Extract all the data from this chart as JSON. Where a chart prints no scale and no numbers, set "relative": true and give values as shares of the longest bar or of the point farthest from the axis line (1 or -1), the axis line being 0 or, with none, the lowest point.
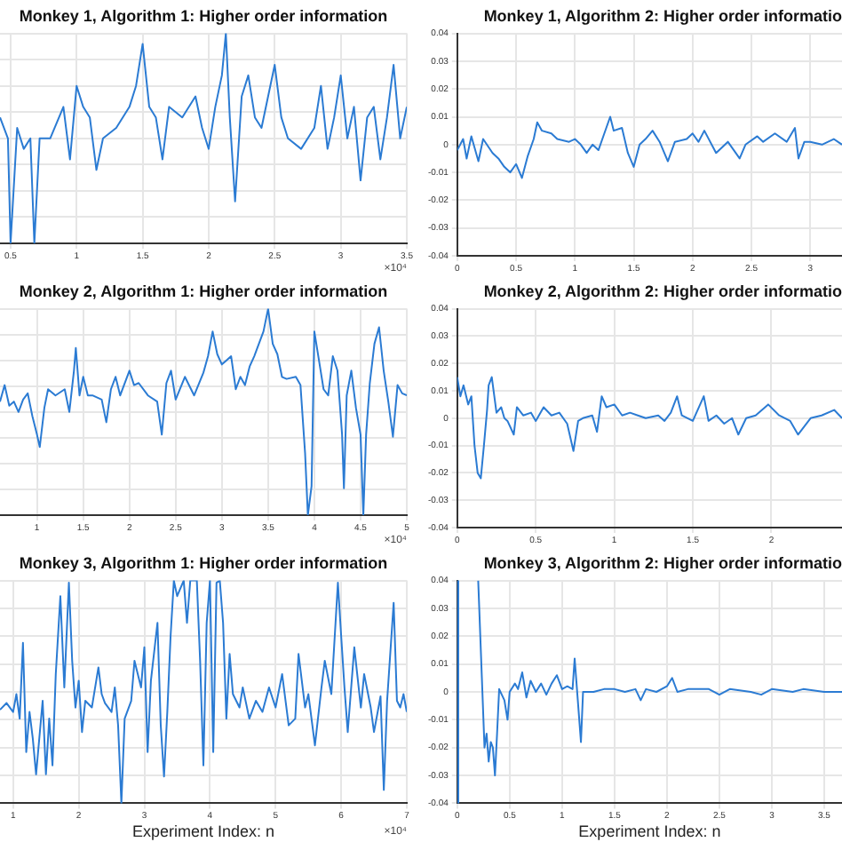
{
  "chart_data": [
    {
      "type": "line",
      "title": "Monkey 1, Algorithm 1: Higher order information",
      "relative": true,
      "grid": true,
      "marker": "none",
      "annotations": [
        "×10⁴"
      ],
      "xlim": [
        0.42,
        3.5
      ],
      "xticks": [
        0.5,
        1,
        1.5,
        2,
        2.5,
        3,
        3.5
      ],
      "series": [
        {
          "color": "#2b7bd3",
          "x": [
            0.42,
            0.48,
            0.5,
            0.55,
            0.6,
            0.65,
            0.68,
            0.72,
            0.8,
            0.9,
            0.95,
            1.0,
            1.05,
            1.1,
            1.15,
            1.2,
            1.3,
            1.4,
            1.45,
            1.5,
            1.55,
            1.6,
            1.65,
            1.7,
            1.8,
            1.9,
            1.95,
            2.0,
            2.05,
            2.1,
            2.13,
            2.16,
            2.2,
            2.25,
            2.3,
            2.35,
            2.4,
            2.5,
            2.55,
            2.6,
            2.7,
            2.8,
            2.85,
            2.9,
            2.95,
            3.0,
            3.05,
            3.1,
            3.15,
            3.2,
            3.25,
            3.3,
            3.35,
            3.4,
            3.45,
            3.5
          ],
          "values": [
            0.6,
            0.5,
            0,
            0.55,
            0.45,
            0.5,
            0,
            0.5,
            0.5,
            0.65,
            0.4,
            0.75,
            0.65,
            0.6,
            0.35,
            0.5,
            0.55,
            0.65,
            0.75,
            0.95,
            0.65,
            0.6,
            0.4,
            0.65,
            0.6,
            0.7,
            0.55,
            0.45,
            0.65,
            0.8,
            1,
            0.6,
            0.2,
            0.7,
            0.8,
            0.6,
            0.55,
            0.85,
            0.6,
            0.5,
            0.45,
            0.55,
            0.75,
            0.45,
            0.6,
            0.8,
            0.5,
            0.65,
            0.3,
            0.6,
            0.65,
            0.4,
            0.6,
            0.85,
            0.5,
            0.65
          ]
        }
      ]
    },
    {
      "type": "line",
      "title": "Monkey 1, Algorithm 2: Higher order informatio",
      "grid": true,
      "marker": "none",
      "xlim": [
        0,
        3.27
      ],
      "xticks": [
        0,
        0.5,
        1,
        1.5,
        2,
        2.5,
        3
      ],
      "ylim": [
        -0.04,
        0.04
      ],
      "yticks": [
        -0.04,
        -0.03,
        -0.02,
        -0.01,
        0,
        0.01,
        0.02,
        0.03,
        0.04
      ],
      "series": [
        {
          "color": "#2b7bd3",
          "x": [
            0,
            0.05,
            0.08,
            0.12,
            0.18,
            0.22,
            0.3,
            0.35,
            0.4,
            0.45,
            0.5,
            0.55,
            0.6,
            0.65,
            0.68,
            0.72,
            0.8,
            0.85,
            0.95,
            1.0,
            1.05,
            1.1,
            1.15,
            1.2,
            1.25,
            1.3,
            1.33,
            1.4,
            1.45,
            1.5,
            1.55,
            1.6,
            1.66,
            1.72,
            1.79,
            1.85,
            1.95,
            2.0,
            2.05,
            2.1,
            2.2,
            2.3,
            2.4,
            2.45,
            2.55,
            2.6,
            2.7,
            2.8,
            2.87,
            2.9,
            2.95,
            3.0,
            3.1,
            3.2,
            3.27
          ],
          "values": [
            -0.002,
            0.002,
            -0.005,
            0.003,
            -0.006,
            0.002,
            -0.003,
            -0.005,
            -0.008,
            -0.01,
            -0.007,
            -0.012,
            -0.004,
            0.002,
            0.008,
            0.005,
            0.004,
            0.002,
            0.001,
            0.002,
            0,
            -0.003,
            0,
            -0.002,
            0.004,
            0.01,
            0.005,
            0.006,
            -0.003,
            -0.008,
            0,
            0.002,
            0.005,
            0.001,
            -0.006,
            0.001,
            0.002,
            0.004,
            0.001,
            0.005,
            -0.003,
            0.001,
            -0.005,
            0,
            0.003,
            0.001,
            0.004,
            0.001,
            0.006,
            -0.005,
            0.001,
            0.001,
            0,
            0.002,
            0
          ]
        }
      ]
    },
    {
      "type": "line",
      "title": "Monkey 2, Algorithm 1: Higher order information",
      "relative": true,
      "grid": true,
      "marker": "none",
      "annotations": [
        "×10⁴"
      ],
      "xlim": [
        0.6,
        5
      ],
      "xticks": [
        1,
        1.5,
        2,
        2.5,
        3,
        3.5,
        4,
        4.5,
        5
      ],
      "series": [
        {
          "color": "#2b7bd3",
          "x": [
            0.6,
            0.65,
            0.7,
            0.75,
            0.8,
            0.85,
            0.9,
            0.95,
            1.0,
            1.03,
            1.08,
            1.12,
            1.2,
            1.3,
            1.35,
            1.4,
            1.42,
            1.46,
            1.5,
            1.55,
            1.6,
            1.7,
            1.75,
            1.8,
            1.85,
            1.9,
            2.0,
            2.05,
            2.1,
            2.2,
            2.3,
            2.35,
            2.4,
            2.45,
            2.5,
            2.6,
            2.7,
            2.8,
            2.85,
            2.9,
            2.95,
            3.0,
            3.1,
            3.15,
            3.2,
            3.25,
            3.3,
            3.35,
            3.45,
            3.5,
            3.55,
            3.6,
            3.65,
            3.7,
            3.8,
            3.85,
            3.9,
            3.93,
            3.97,
            4.0,
            4.05,
            4.1,
            4.15,
            4.2,
            4.25,
            4.3,
            4.32,
            4.35,
            4.4,
            4.45,
            4.5,
            4.53,
            4.56,
            4.6,
            4.65,
            4.7,
            4.75,
            4.8,
            4.85,
            4.9,
            4.95,
            5.0
          ],
          "values": [
            0.55,
            0.63,
            0.53,
            0.55,
            0.5,
            0.56,
            0.59,
            0.48,
            0.39,
            0.33,
            0.52,
            0.61,
            0.58,
            0.61,
            0.5,
            0.7,
            0.81,
            0.58,
            0.67,
            0.58,
            0.58,
            0.56,
            0.45,
            0.61,
            0.67,
            0.58,
            0.7,
            0.63,
            0.64,
            0.58,
            0.55,
            0.39,
            0.64,
            0.7,
            0.56,
            0.67,
            0.58,
            0.69,
            0.77,
            0.89,
            0.78,
            0.73,
            0.77,
            0.61,
            0.67,
            0.63,
            0.72,
            0.77,
            0.89,
            1,
            0.83,
            0.78,
            0.67,
            0.66,
            0.67,
            0.63,
            0.3,
            0,
            0.14,
            0.89,
            0.75,
            0.61,
            0.58,
            0.77,
            0.7,
            0.39,
            0.13,
            0.58,
            0.7,
            0.52,
            0.39,
            0,
            0.39,
            0.64,
            0.83,
            0.91,
            0.7,
            0.55,
            0.38,
            0.63,
            0.59,
            0.58
          ]
        }
      ]
    },
    {
      "type": "line",
      "title": "Monkey 2, Algorithm 2: Higher order informatio",
      "grid": true,
      "marker": "none",
      "xlim": [
        0,
        2.45
      ],
      "xticks": [
        0,
        0.5,
        1,
        1.5,
        2
      ],
      "ylim": [
        -0.04,
        0.04
      ],
      "yticks": [
        -0.04,
        -0.03,
        -0.02,
        -0.01,
        0,
        0.01,
        0.02,
        0.03,
        0.04
      ],
      "series": [
        {
          "color": "#2b7bd3",
          "x": [
            0,
            0.02,
            0.04,
            0.07,
            0.09,
            0.11,
            0.13,
            0.15,
            0.17,
            0.19,
            0.2,
            0.22,
            0.25,
            0.28,
            0.3,
            0.32,
            0.36,
            0.38,
            0.42,
            0.47,
            0.5,
            0.55,
            0.6,
            0.65,
            0.7,
            0.74,
            0.77,
            0.8,
            0.86,
            0.89,
            0.92,
            0.95,
            1.0,
            1.05,
            1.1,
            1.15,
            1.2,
            1.28,
            1.32,
            1.36,
            1.4,
            1.43,
            1.5,
            1.57,
            1.6,
            1.65,
            1.7,
            1.75,
            1.79,
            1.84,
            1.9,
            1.98,
            2.05,
            2.12,
            2.17,
            2.25,
            2.32,
            2.4,
            2.45
          ],
          "values": [
            0.015,
            0.008,
            0.012,
            0.005,
            0.008,
            -0.01,
            -0.02,
            -0.022,
            -0.01,
            0.003,
            0.012,
            0.015,
            0.002,
            0.004,
            0,
            -0.001,
            -0.006,
            0.004,
            0.001,
            0.002,
            -0.001,
            0.004,
            0.001,
            0.002,
            -0.002,
            -0.012,
            -0.001,
            0,
            0.001,
            -0.005,
            0.008,
            0.004,
            0.005,
            0.001,
            0.002,
            0.001,
            0,
            0.001,
            -0.001,
            0.002,
            0.008,
            0.001,
            -0.001,
            0.008,
            -0.001,
            0.001,
            -0.002,
            0,
            -0.006,
            0,
            0.001,
            0.005,
            0.001,
            -0.001,
            -0.006,
            0,
            0.001,
            0.003,
            0
          ]
        }
      ]
    },
    {
      "type": "line",
      "title": "Monkey 3, Algorithm 1: Higher order information",
      "xlabel": "Experiment Index: n",
      "relative": true,
      "grid": true,
      "marker": "none",
      "annotations": [
        "×10⁴"
      ],
      "xlim": [
        0.8,
        7
      ],
      "xticks": [
        1,
        2,
        3,
        4,
        5,
        6,
        7
      ],
      "series": [
        {
          "color": "#2b7bd3",
          "x": [
            0.8,
            0.9,
            1.0,
            1.05,
            1.1,
            1.15,
            1.2,
            1.25,
            1.3,
            1.35,
            1.45,
            1.5,
            1.55,
            1.6,
            1.65,
            1.72,
            1.78,
            1.85,
            1.9,
            1.95,
            2.0,
            2.05,
            2.1,
            2.2,
            2.3,
            2.35,
            2.4,
            2.5,
            2.55,
            2.6,
            2.65,
            2.7,
            2.8,
            2.85,
            2.95,
            3.0,
            3.05,
            3.1,
            3.2,
            3.25,
            3.3,
            3.35,
            3.4,
            3.45,
            3.5,
            3.6,
            3.65,
            3.7,
            3.8,
            3.85,
            3.9,
            3.95,
            4.0,
            4.05,
            4.1,
            4.15,
            4.2,
            4.25,
            4.3,
            4.35,
            4.45,
            4.5,
            4.6,
            4.7,
            4.8,
            4.9,
            5.0,
            5.1,
            5.2,
            5.3,
            5.35,
            5.45,
            5.5,
            5.6,
            5.7,
            5.75,
            5.85,
            5.95,
            6.0,
            6.05,
            6.1,
            6.2,
            6.3,
            6.35,
            6.45,
            6.5,
            6.6,
            6.65,
            6.7,
            6.8,
            6.85,
            6.9,
            6.95,
            7.0
          ],
          "values": [
            0.42,
            0.45,
            0.41,
            0.49,
            0.38,
            0.72,
            0.23,
            0.41,
            0.29,
            0.13,
            0.46,
            0.13,
            0.38,
            0.17,
            0.58,
            0.93,
            0.52,
            0.99,
            0.64,
            0.43,
            0.55,
            0.32,
            0.46,
            0.43,
            0.61,
            0.49,
            0.45,
            0.41,
            0.52,
            0.35,
            0,
            0.38,
            0.46,
            0.64,
            0.52,
            0.7,
            0.23,
            0.55,
            0.81,
            0.35,
            0.12,
            0.41,
            0.75,
            1,
            0.93,
            1,
            0.81,
            1,
            1,
            0.64,
            0.17,
            0.81,
            1,
            0.23,
            0.99,
            1,
            0.81,
            0.38,
            0.67,
            0.49,
            0.43,
            0.52,
            0.38,
            0.46,
            0.41,
            0.52,
            0.43,
            0.58,
            0.35,
            0.38,
            0.67,
            0.43,
            0.49,
            0.26,
            0.52,
            0.64,
            0.49,
            0.99,
            0.75,
            0.52,
            0.32,
            0.7,
            0.43,
            0.58,
            0.43,
            0.32,
            0.48,
            0.06,
            0.46,
            0.9,
            0.46,
            0.43,
            0.49,
            0.41
          ]
        }
      ]
    },
    {
      "type": "line",
      "title": "Monkey 3, Algorithm 2: Higher order informatio",
      "xlabel": "Experiment Index: n",
      "grid": true,
      "marker": "none",
      "xlim": [
        0,
        3.67
      ],
      "xticks": [
        0,
        0.5,
        1,
        1.5,
        2,
        2.5,
        3,
        3.5
      ],
      "ylim": [
        -0.04,
        0.04
      ],
      "yticks": [
        -0.04,
        -0.03,
        -0.02,
        -0.01,
        0,
        0.01,
        0.02,
        0.03,
        0.04
      ],
      "series": [
        {
          "color": "#2b7bd3",
          "x": [
            0,
            0.01,
            0.05,
            0.2,
            0.22,
            0.24,
            0.26,
            0.28,
            0.3,
            0.32,
            0.34,
            0.36,
            0.38,
            0.4,
            0.45,
            0.48,
            0.5,
            0.55,
            0.58,
            0.62,
            0.66,
            0.7,
            0.75,
            0.8,
            0.85,
            0.9,
            0.95,
            1.0,
            1.05,
            1.1,
            1.12,
            1.15,
            1.18,
            1.2,
            1.3,
            1.4,
            1.5,
            1.6,
            1.7,
            1.75,
            1.8,
            1.9,
            2.0,
            2.05,
            2.1,
            2.2,
            2.4,
            2.5,
            2.6,
            2.8,
            2.9,
            3.0,
            3.2,
            3.3,
            3.5,
            3.67
          ],
          "values": [
            0.04,
            -0.04,
            null,
            0.04,
            0.02,
            0,
            -0.02,
            -0.015,
            -0.025,
            -0.018,
            -0.02,
            -0.03,
            -0.015,
            0.001,
            -0.003,
            -0.01,
            0,
            0.003,
            0.001,
            0.007,
            -0.002,
            0.004,
            0,
            0.003,
            -0.001,
            0.003,
            0.006,
            0.001,
            0.002,
            0.001,
            0.012,
            -0.003,
            -0.018,
            0,
            0,
            0.001,
            0.001,
            0,
            0.001,
            -0.003,
            0.001,
            0,
            0.002,
            0.005,
            0,
            0.001,
            0.001,
            -0.001,
            0.001,
            0,
            -0.001,
            0.001,
            0,
            0.001,
            0,
            0
          ]
        }
      ]
    }
  ]
}
